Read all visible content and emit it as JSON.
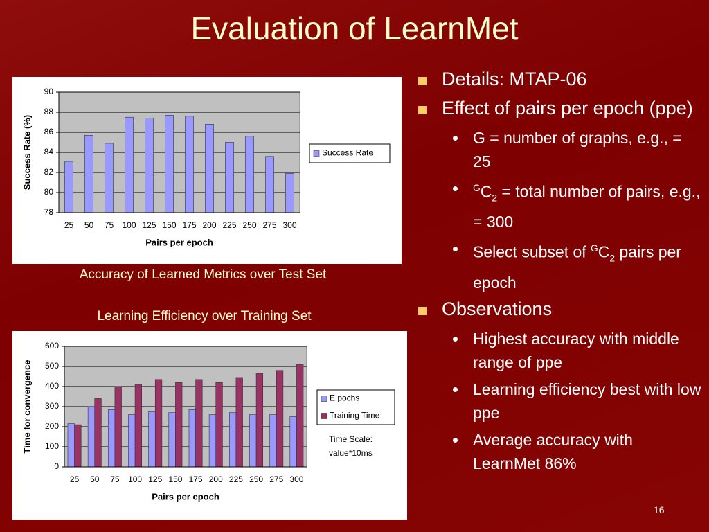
{
  "slide": {
    "title": "Evaluation of LearnMet",
    "page_number": "16",
    "bullets": [
      {
        "level": 1,
        "parts": [
          {
            "text": "Details: MTAP-06"
          }
        ]
      },
      {
        "level": 1,
        "parts": [
          {
            "text": "Effect of pairs per epoch (ppe)"
          }
        ]
      },
      {
        "level": 2,
        "parts": [
          {
            "text": "G = number of graphs, e.g., = 25"
          }
        ]
      },
      {
        "level": 2,
        "parts": [
          {
            "text": "G",
            "script": "sup"
          },
          {
            "text": "C"
          },
          {
            "text": "2",
            "script": "sub"
          },
          {
            "text": " = total number of pairs, e.g., = 300"
          }
        ]
      },
      {
        "level": 2,
        "parts": [
          {
            "text": "Select subset of "
          },
          {
            "text": "G",
            "script": "sup"
          },
          {
            "text": "C"
          },
          {
            "text": "2",
            "script": "sub"
          },
          {
            "text": " pairs per epoch"
          }
        ]
      },
      {
        "level": 1,
        "parts": [
          {
            "text": "Observations"
          }
        ]
      },
      {
        "level": 2,
        "parts": [
          {
            "text": "Highest accuracy with middle range of ppe"
          }
        ]
      },
      {
        "level": 2,
        "parts": [
          {
            "text": "Learning efficiency best with low ppe"
          }
        ]
      },
      {
        "level": 2,
        "parts": [
          {
            "text": "Average accuracy with LearnMet 86%"
          }
        ]
      }
    ]
  },
  "chart_data": [
    {
      "type": "bar",
      "caption": "Accuracy of Learned Metrics over Test Set",
      "x_label": "Pairs per epoch",
      "y_label": "Success Rate (%)",
      "categories": [
        "25",
        "50",
        "75",
        "100",
        "125",
        "150",
        "175",
        "200",
        "225",
        "250",
        "275",
        "300"
      ],
      "series": [
        {
          "name": "Success Rate",
          "color": "#9999ff",
          "values": [
            83.1,
            85.7,
            84.9,
            87.5,
            87.4,
            87.7,
            87.6,
            86.8,
            85.0,
            85.6,
            83.6,
            81.9
          ]
        }
      ],
      "ylim": [
        78,
        90
      ],
      "yticks": [
        78,
        80,
        82,
        84,
        86,
        88,
        90
      ],
      "grid": true,
      "legend": "right"
    },
    {
      "type": "bar",
      "caption": "Learning Efficiency over Training Set",
      "x_label": "Pairs per epoch",
      "y_label": "Time for convergence",
      "categories": [
        "25",
        "50",
        "75",
        "100",
        "125",
        "150",
        "175",
        "200",
        "225",
        "250",
        "275",
        "300"
      ],
      "series": [
        {
          "name": "E pochs",
          "color": "#9999ff",
          "values": [
            215,
            300,
            285,
            260,
            275,
            270,
            285,
            260,
            270,
            260,
            260,
            250
          ]
        },
        {
          "name": "Training Time",
          "color": "#993366",
          "values": [
            210,
            340,
            400,
            410,
            435,
            420,
            435,
            420,
            445,
            465,
            480,
            510
          ]
        }
      ],
      "ylim": [
        0,
        600
      ],
      "yticks": [
        0,
        100,
        200,
        300,
        400,
        500,
        600
      ],
      "grid": true,
      "legend": "right",
      "annotation": [
        "Time Scale:",
        "value*10ms"
      ]
    }
  ]
}
